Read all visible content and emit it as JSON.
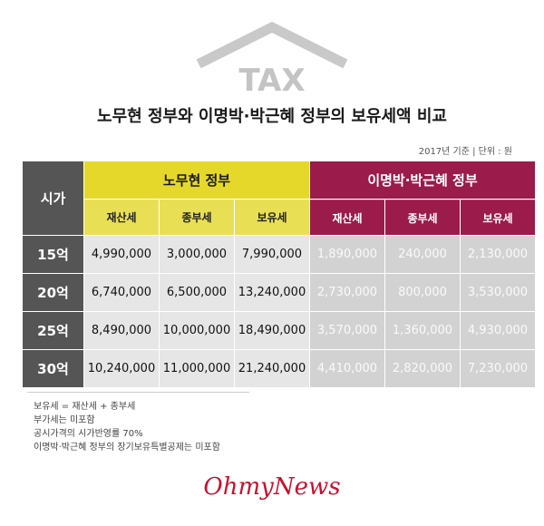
{
  "logo_text": "TAX",
  "title": "노무현 정부와 이명박·박근혜 정부의 보유세액 비교",
  "base_note": "2017년 기준 | 단위 : 원",
  "table": {
    "corner_label": "시가",
    "group_a": "노무현 정부",
    "group_b": "이명박·박근혜 정부",
    "sub_headers": [
      "재산세",
      "종부세",
      "보유세"
    ],
    "rows": [
      {
        "label": "15억",
        "a": [
          "4,990,000",
          "3,000,000",
          "7,990,000"
        ],
        "b": [
          "1,890,000",
          "240,000",
          "2,130,000"
        ]
      },
      {
        "label": "20억",
        "a": [
          "6,740,000",
          "6,500,000",
          "13,240,000"
        ],
        "b": [
          "2,730,000",
          "800,000",
          "3,530,000"
        ]
      },
      {
        "label": "25억",
        "a": [
          "8,490,000",
          "10,000,000",
          "18,490,000"
        ],
        "b": [
          "3,570,000",
          "1,360,000",
          "4,930,000"
        ]
      },
      {
        "label": "30억",
        "a": [
          "10,240,000",
          "11,000,000",
          "21,240,000"
        ],
        "b": [
          "4,410,000",
          "2,820,000",
          "7,230,000"
        ]
      }
    ]
  },
  "notes": [
    "보유세 = 재산세 + 종부세",
    "부가세는 미포함",
    "공시가격의 시가반영률 70%",
    "이명박·박근혜 정부의 장기보유특별공제는 미포함"
  ],
  "brand": "OhmyNews",
  "colors": {
    "group_a": "#e6d82b",
    "group_b": "#9b1b4a",
    "row_head": "#555555",
    "brand": "#c8102e"
  }
}
